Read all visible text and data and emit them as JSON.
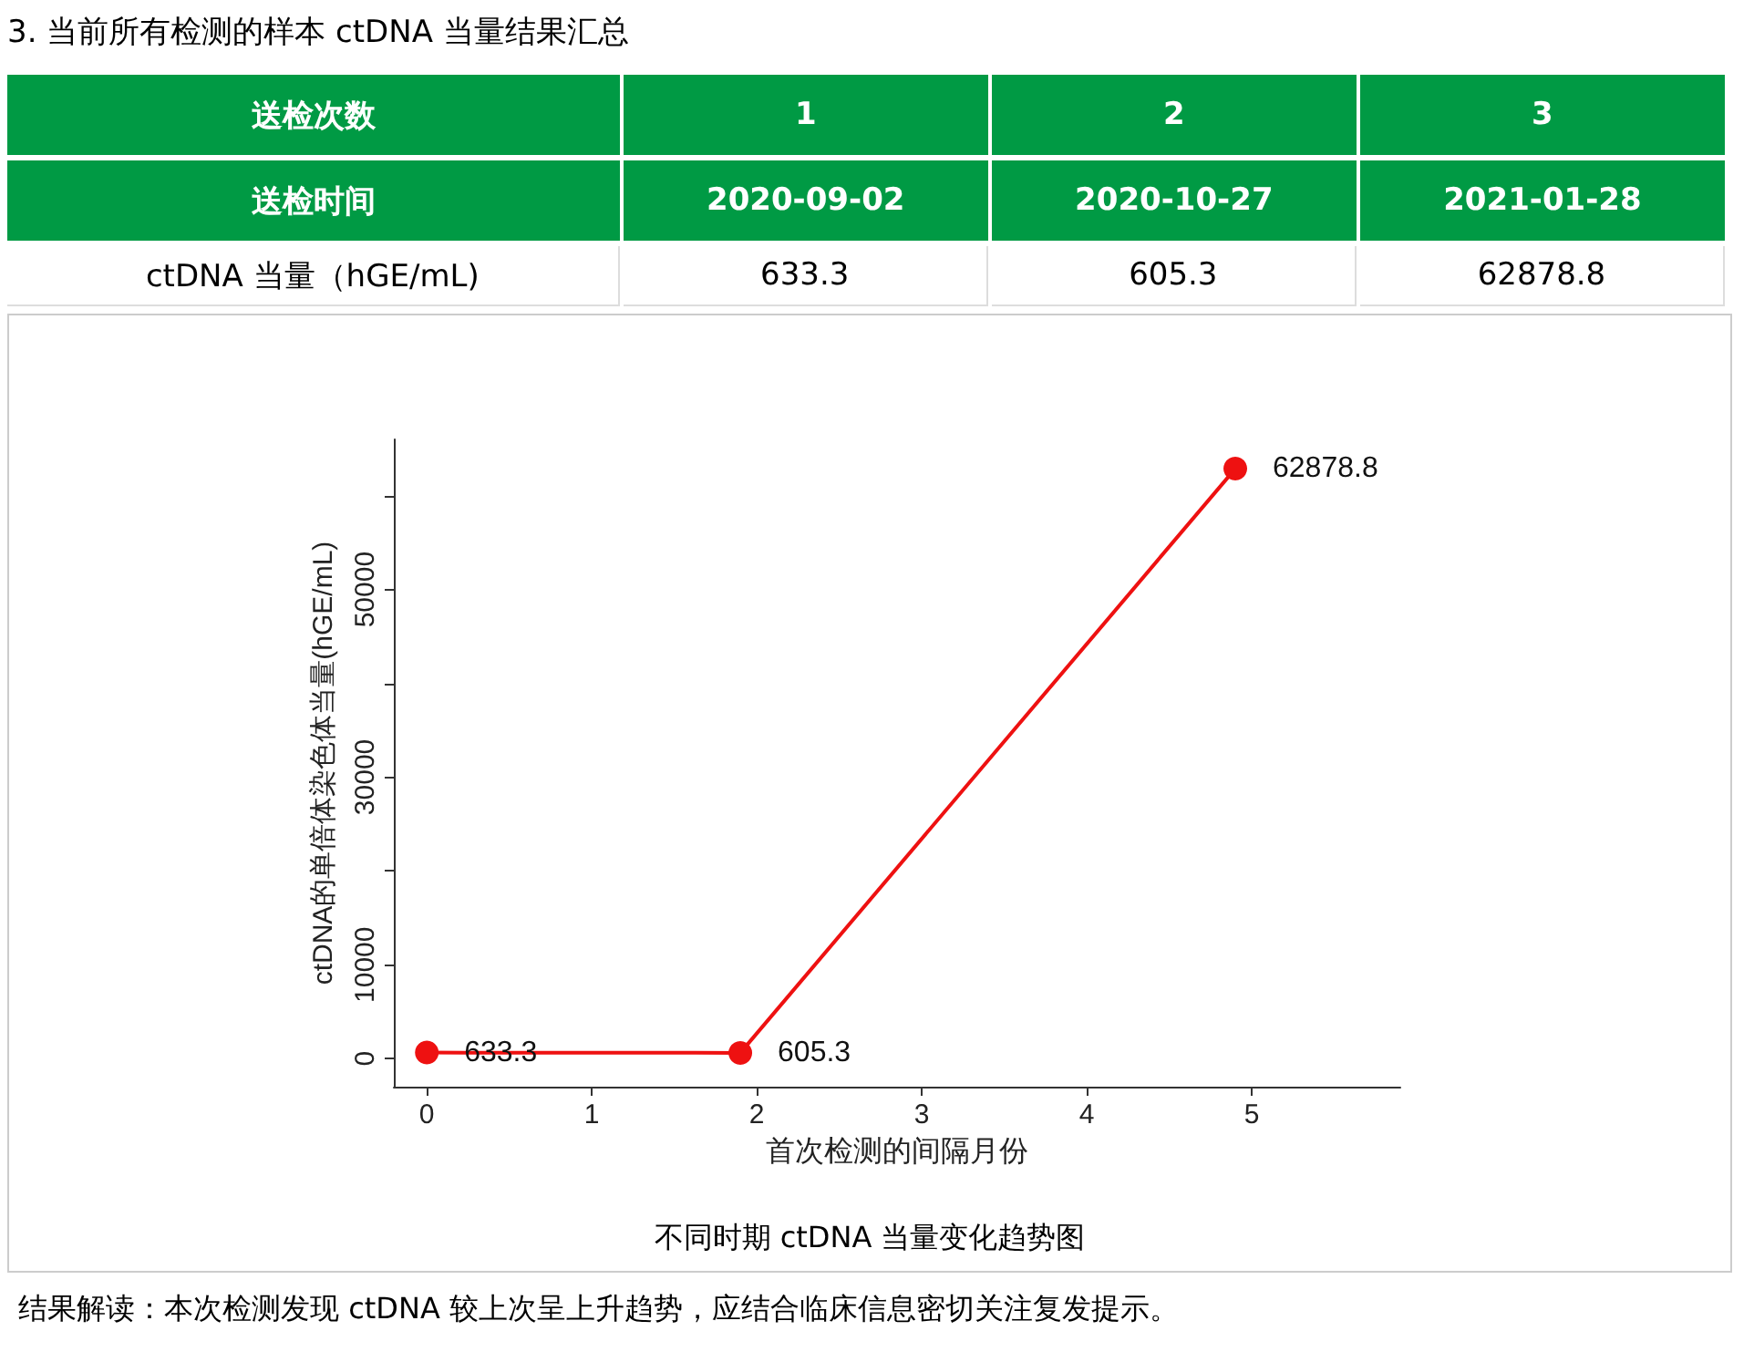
{
  "chart_data": [
    {
      "type": "other",
      "title": "3. 当前所有检测的样本 ctDNA 当量结果汇总",
      "annotations": [
        "送检次数",
        "1",
        "2",
        "3",
        "送检时间",
        "2020-09-02",
        "2020-10-27",
        "2021-01-28",
        "ctDNA 当量（hGE/mL)",
        "633.3",
        "605.3",
        "62878.8"
      ]
    },
    {
      "type": "line",
      "title": "不同时期 ctDNA 当量变化趋势图",
      "xlabel": "首次检测的间隔月份",
      "ylabel": "ctDNA的单倍体染色体当量(hGE/mL)",
      "x": [
        0,
        1.9,
        4.9
      ],
      "series": [
        {
          "color": "#ee1111",
          "values": [
            633.3,
            605.3,
            62878.8
          ]
        }
      ],
      "xlim": [
        -0.2,
        5.9
      ],
      "xticks": [
        0,
        1,
        2,
        3,
        4,
        5
      ],
      "ylim": [
        -3000,
        66000
      ],
      "yticks": [
        0,
        10000,
        {
          "value": 20000,
          "label": null
        },
        30000,
        {
          "value": 40000,
          "label": null
        },
        50000,
        {
          "value": 60000,
          "label": null
        }
      ],
      "data_labels": true,
      "marker": "circle",
      "line_style": "solid",
      "grid": false,
      "annotations": [
        "结果解读：本次检测发现 ctDNA 较上次呈上升趋势，应结合临床信息密切关注复发提示。"
      ]
    }
  ]
}
